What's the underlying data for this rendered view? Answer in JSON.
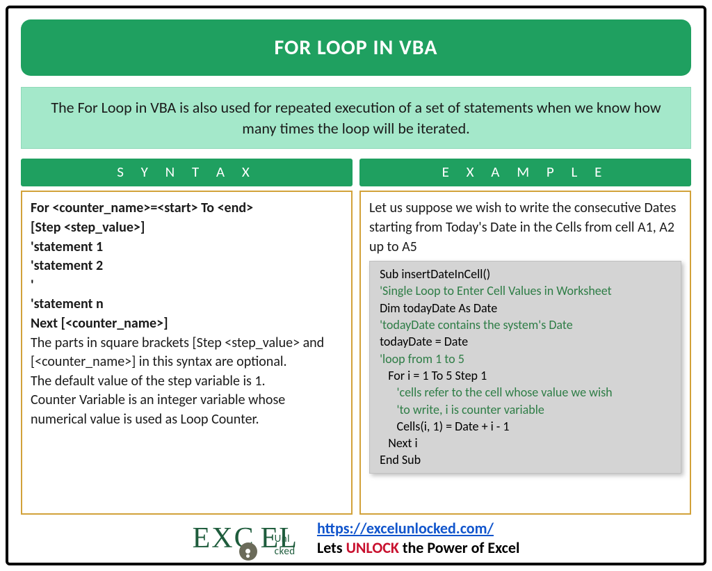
{
  "title": "FOR LOOP IN VBA",
  "description": "The For Loop in VBA is also used for repeated execution of a set of statements when we know how many times the loop will be iterated.",
  "colors": {
    "header_bg": "#1fa060",
    "header_text": "#ffffff",
    "desc_bg": "#a4e8ca",
    "body_border": "#d2a23a",
    "code_bg": "#d4d4d4",
    "comment": "#2e7d46",
    "link": "#1155cc",
    "unlock": "#c8102e",
    "logo": "#1e5c3c"
  },
  "syntax": {
    "header": "S Y N T A X",
    "lines_bold": [
      "For <counter_name>=<start> To <end>",
      "[Step <step_value>]",
      "'statement 1",
      "'statement 2",
      "'",
      "'statement n",
      "Next [<counter_name>]"
    ],
    "explain1": "The parts in square brackets [Step <step_value> and [<counter_name>] in this syntax are optional.",
    "explain2": "The default value of the step variable is 1.",
    "explain3": "Counter Variable is an integer variable whose numerical value is used as Loop Counter."
  },
  "example": {
    "header": "E X A M P L E",
    "intro": "Let us suppose we wish to write the consecutive Dates starting from Today's Date in the Cells from cell A1, A2 up to A5",
    "code": [
      {
        "t": " Sub insertDateInCell()",
        "c": "blk"
      },
      {
        "t": " 'Single Loop to Enter Cell Values in Worksheet",
        "c": "cmt"
      },
      {
        "t": " Dim todayDate As Date",
        "c": "blk"
      },
      {
        "t": " 'todayDate contains the system's Date",
        "c": "cmt"
      },
      {
        "t": " todayDate = Date",
        "c": "blk"
      },
      {
        "t": " 'loop from 1 to 5",
        "c": "cmt"
      },
      {
        "t": "    For i = 1 To 5 Step 1",
        "c": "blk"
      },
      {
        "t": "       'cells refer to the cell whose value we wish",
        "c": "cmt"
      },
      {
        "t": "       'to write, i is counter variable",
        "c": "cmt"
      },
      {
        "t": "       Cells(i, 1) = Date + i - 1",
        "c": "blk"
      },
      {
        "t": "    Next i",
        "c": "blk"
      },
      {
        "t": " End Sub",
        "c": "blk"
      }
    ]
  },
  "footer": {
    "logo_main1": "EX",
    "logo_c": "C",
    "logo_main2": "EL",
    "logo_sub": "Unl   cked",
    "url": "https://excelunlocked.com/",
    "tagline_pre": "Lets ",
    "tagline_unlock": "UNLOCK",
    "tagline_post": " the Power of Excel"
  }
}
